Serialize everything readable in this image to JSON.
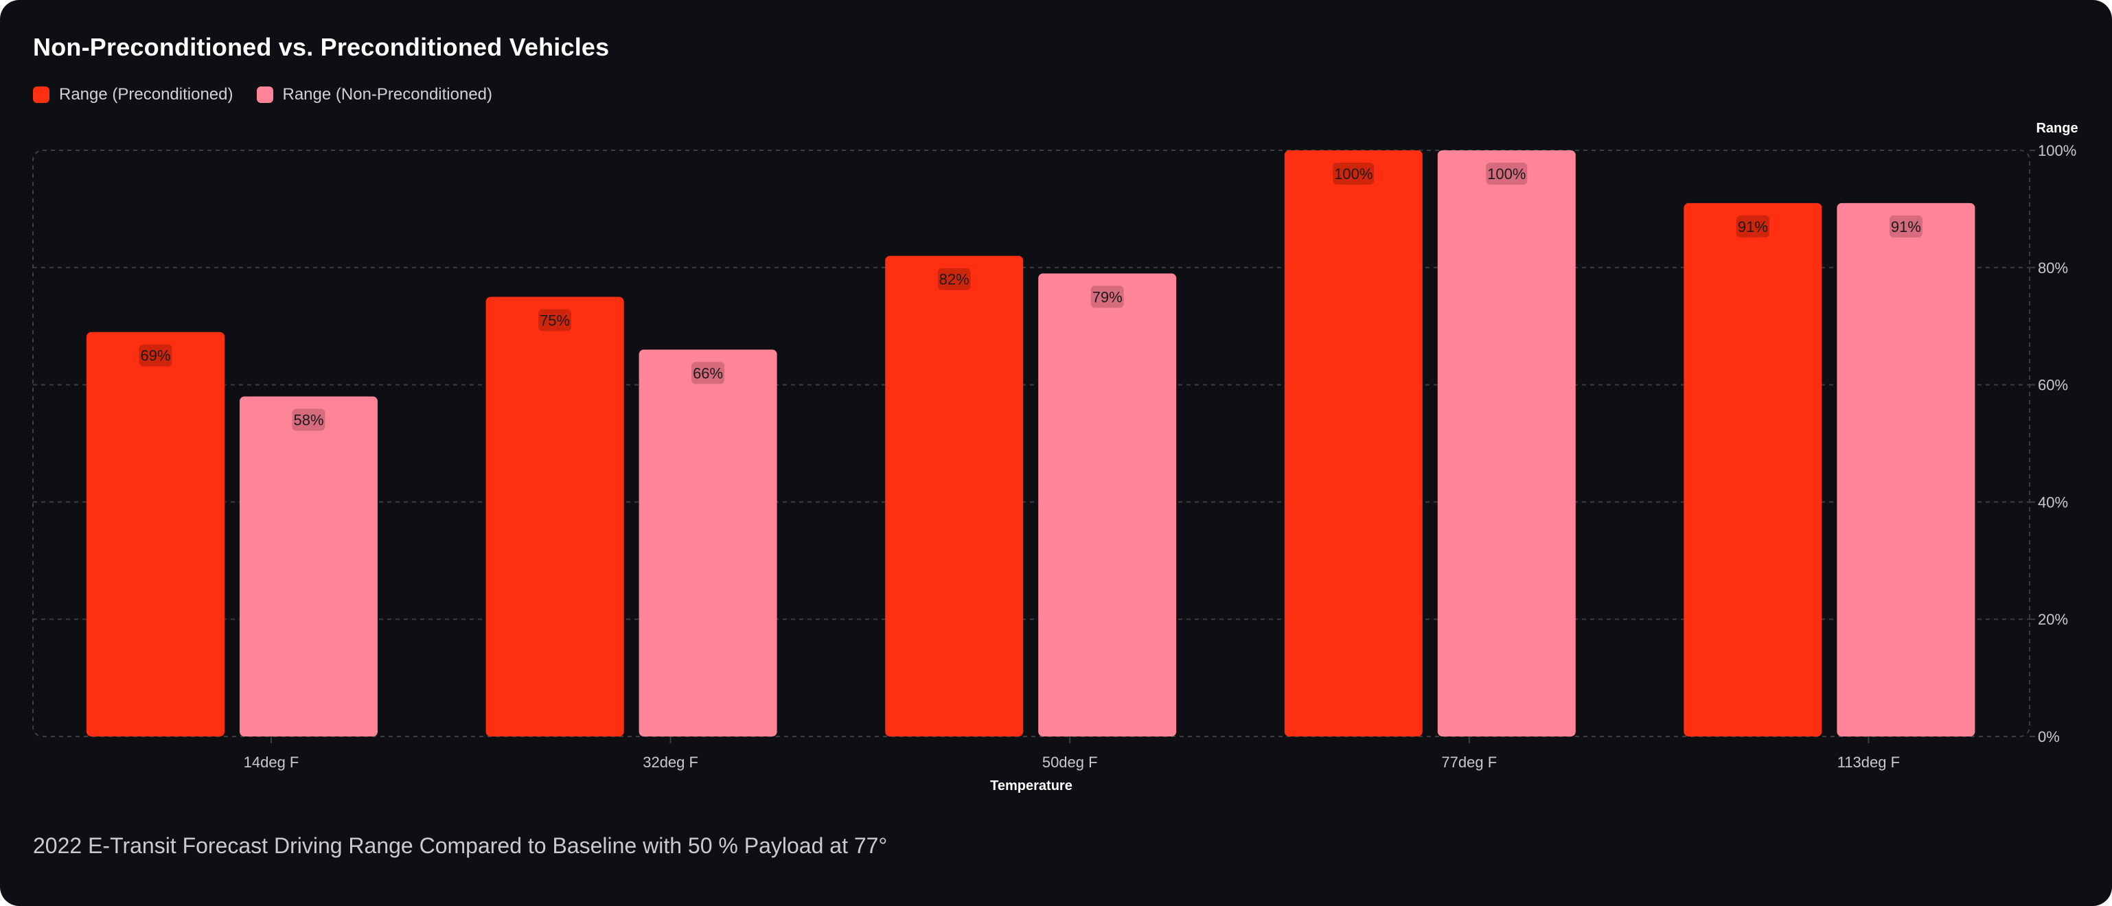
{
  "title": "Non-Preconditioned vs. Preconditioned Vehicles",
  "caption": "2022 E-Transit Forecast Driving Range Compared to Baseline with 50 % Payload at 77°",
  "colors": {
    "background": "#0e0f13",
    "preconditioned": "#ff2f12",
    "non_preconditioned": "#fe8598",
    "grid": "#3a3d45",
    "tick_text": "#c7c9cf",
    "axis_title": "#ffffff"
  },
  "chart_data": {
    "type": "bar",
    "title": "Non-Preconditioned vs. Preconditioned Vehicles",
    "xlabel": "Temperature",
    "ylabel": "Range",
    "categories": [
      "14deg F",
      "32deg F",
      "50deg F",
      "77deg F",
      "113deg F"
    ],
    "series": [
      {
        "name": "Range (Preconditioned)",
        "values": [
          69,
          75,
          82,
          100,
          91
        ],
        "color": "#ff2f12"
      },
      {
        "name": "Range (Non-Preconditioned)",
        "values": [
          58,
          66,
          79,
          100,
          91
        ],
        "color": "#fe8598"
      }
    ],
    "value_suffix": "%",
    "ylim": [
      0,
      100
    ],
    "yticks": [
      "0%",
      "20%",
      "40%",
      "60%",
      "80%",
      "100%"
    ],
    "y_axis_side": "right",
    "grid": true,
    "legend_placement": "top-left"
  }
}
